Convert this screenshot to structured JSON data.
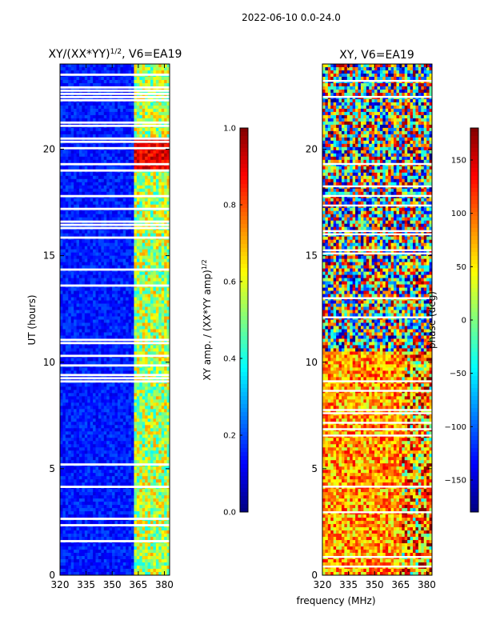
{
  "suptitle": "2022-06-10 0.0-24.0",
  "colormap": [
    "#00007f",
    "#0000ff",
    "#007fff",
    "#00ffff",
    "#7fff7f",
    "#ffff00",
    "#ff7f00",
    "#ff0000",
    "#7f0000"
  ],
  "chart_data": [
    {
      "type": "heatmap",
      "title_main": "XY/(XX*YY)",
      "title_exp": "1/2",
      "title_suffix": ", V6=EA19",
      "xlabel": "",
      "ylabel": "UT (hours)",
      "xlim": [
        320,
        383
      ],
      "ylim": [
        0,
        24
      ],
      "xticks": [
        320,
        335,
        350,
        365,
        380
      ],
      "yticks": [
        0,
        5,
        10,
        15,
        20
      ],
      "colorbar": {
        "label_main": "XY amp. / (XX*YY amp)",
        "label_exp": "1/2",
        "range": [
          0.0,
          1.0
        ],
        "ticks": [
          0.0,
          0.2,
          0.4,
          0.6,
          0.8,
          1.0
        ],
        "tick_labels": [
          "0.0",
          "0.2",
          "0.4",
          "0.6",
          "0.8",
          "1.0"
        ]
      },
      "description_values": {
        "low_band_mhz": [
          320,
          362
        ],
        "low_band_level": 0.15,
        "high_band_mhz": [
          362,
          383
        ],
        "high_band_level": 0.55,
        "hot_spot_hours": [
          19,
          20.5
        ],
        "hot_spot_level": 0.9
      }
    },
    {
      "type": "heatmap",
      "title_main": "XY, V6=EA19",
      "title_exp": "",
      "title_suffix": "",
      "xlabel": "frequency (MHz)",
      "ylabel": "",
      "xlim": [
        320,
        383
      ],
      "ylim": [
        0,
        24
      ],
      "xticks": [
        320,
        335,
        350,
        365,
        380
      ],
      "yticks": [
        0,
        5,
        10,
        15,
        20
      ],
      "colorbar": {
        "label_main": "phase (deg)",
        "label_exp": "",
        "range": [
          -180,
          180
        ],
        "ticks": [
          -150,
          -100,
          -50,
          0,
          50,
          100,
          150
        ],
        "tick_labels": [
          "−150",
          "−100",
          "−50",
          "0",
          "50",
          "100",
          "150"
        ]
      },
      "description_values": {
        "early_phase_deg": [
          20,
          140
        ],
        "late_phase_deg": [
          -180,
          180
        ]
      }
    }
  ]
}
